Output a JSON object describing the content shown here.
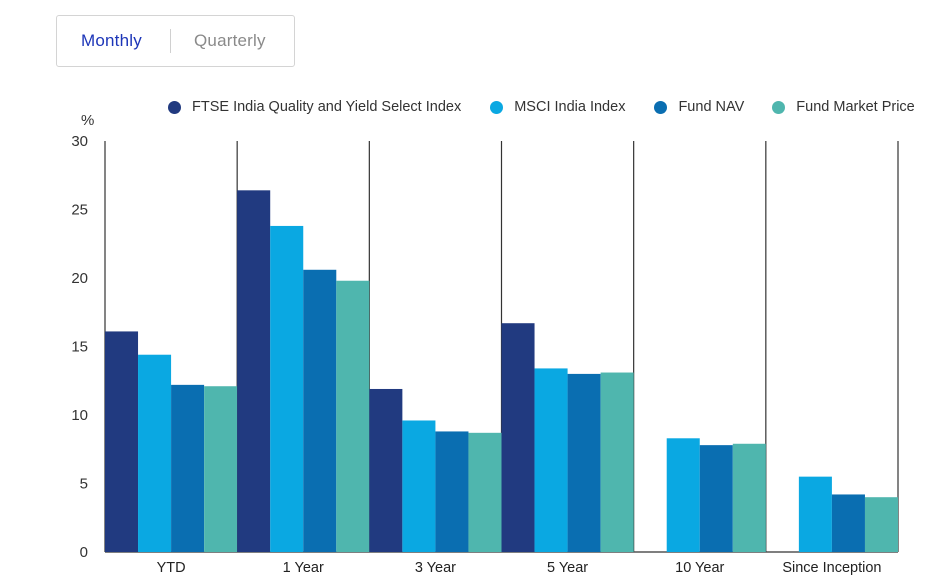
{
  "toggle": {
    "monthly_label": "Monthly",
    "quarterly_label": "Quarterly"
  },
  "colors": {
    "index": "#213a80",
    "msci": "#0aa8e2",
    "nav": "#0a6eb1",
    "market": "#4fb6ae",
    "axis": "#333333",
    "active_tab": "#1d36b8"
  },
  "chart_data": {
    "type": "bar",
    "ylabel": "%",
    "ylim": [
      0,
      30
    ],
    "yticks": [
      0,
      5,
      10,
      15,
      20,
      25,
      30
    ],
    "categories": [
      "YTD",
      "1 Year",
      "3 Year",
      "5 Year",
      "10 Year",
      "Since Inception"
    ],
    "legend_position": "top",
    "grid": false,
    "series": [
      {
        "name": "FTSE India Quality and Yield Select Index",
        "color": "#213a80",
        "values": [
          16.1,
          26.4,
          11.9,
          16.7,
          null,
          null
        ]
      },
      {
        "name": "MSCI India Index",
        "color": "#0aa8e2",
        "values": [
          14.4,
          23.8,
          9.6,
          13.4,
          8.3,
          5.5
        ]
      },
      {
        "name": "Fund NAV",
        "color": "#0a6eb1",
        "values": [
          12.2,
          20.6,
          8.8,
          13.0,
          7.8,
          4.2
        ]
      },
      {
        "name": "Fund Market Price",
        "color": "#4fb6ae",
        "values": [
          12.1,
          19.8,
          8.7,
          13.1,
          7.9,
          4.0
        ]
      }
    ]
  }
}
